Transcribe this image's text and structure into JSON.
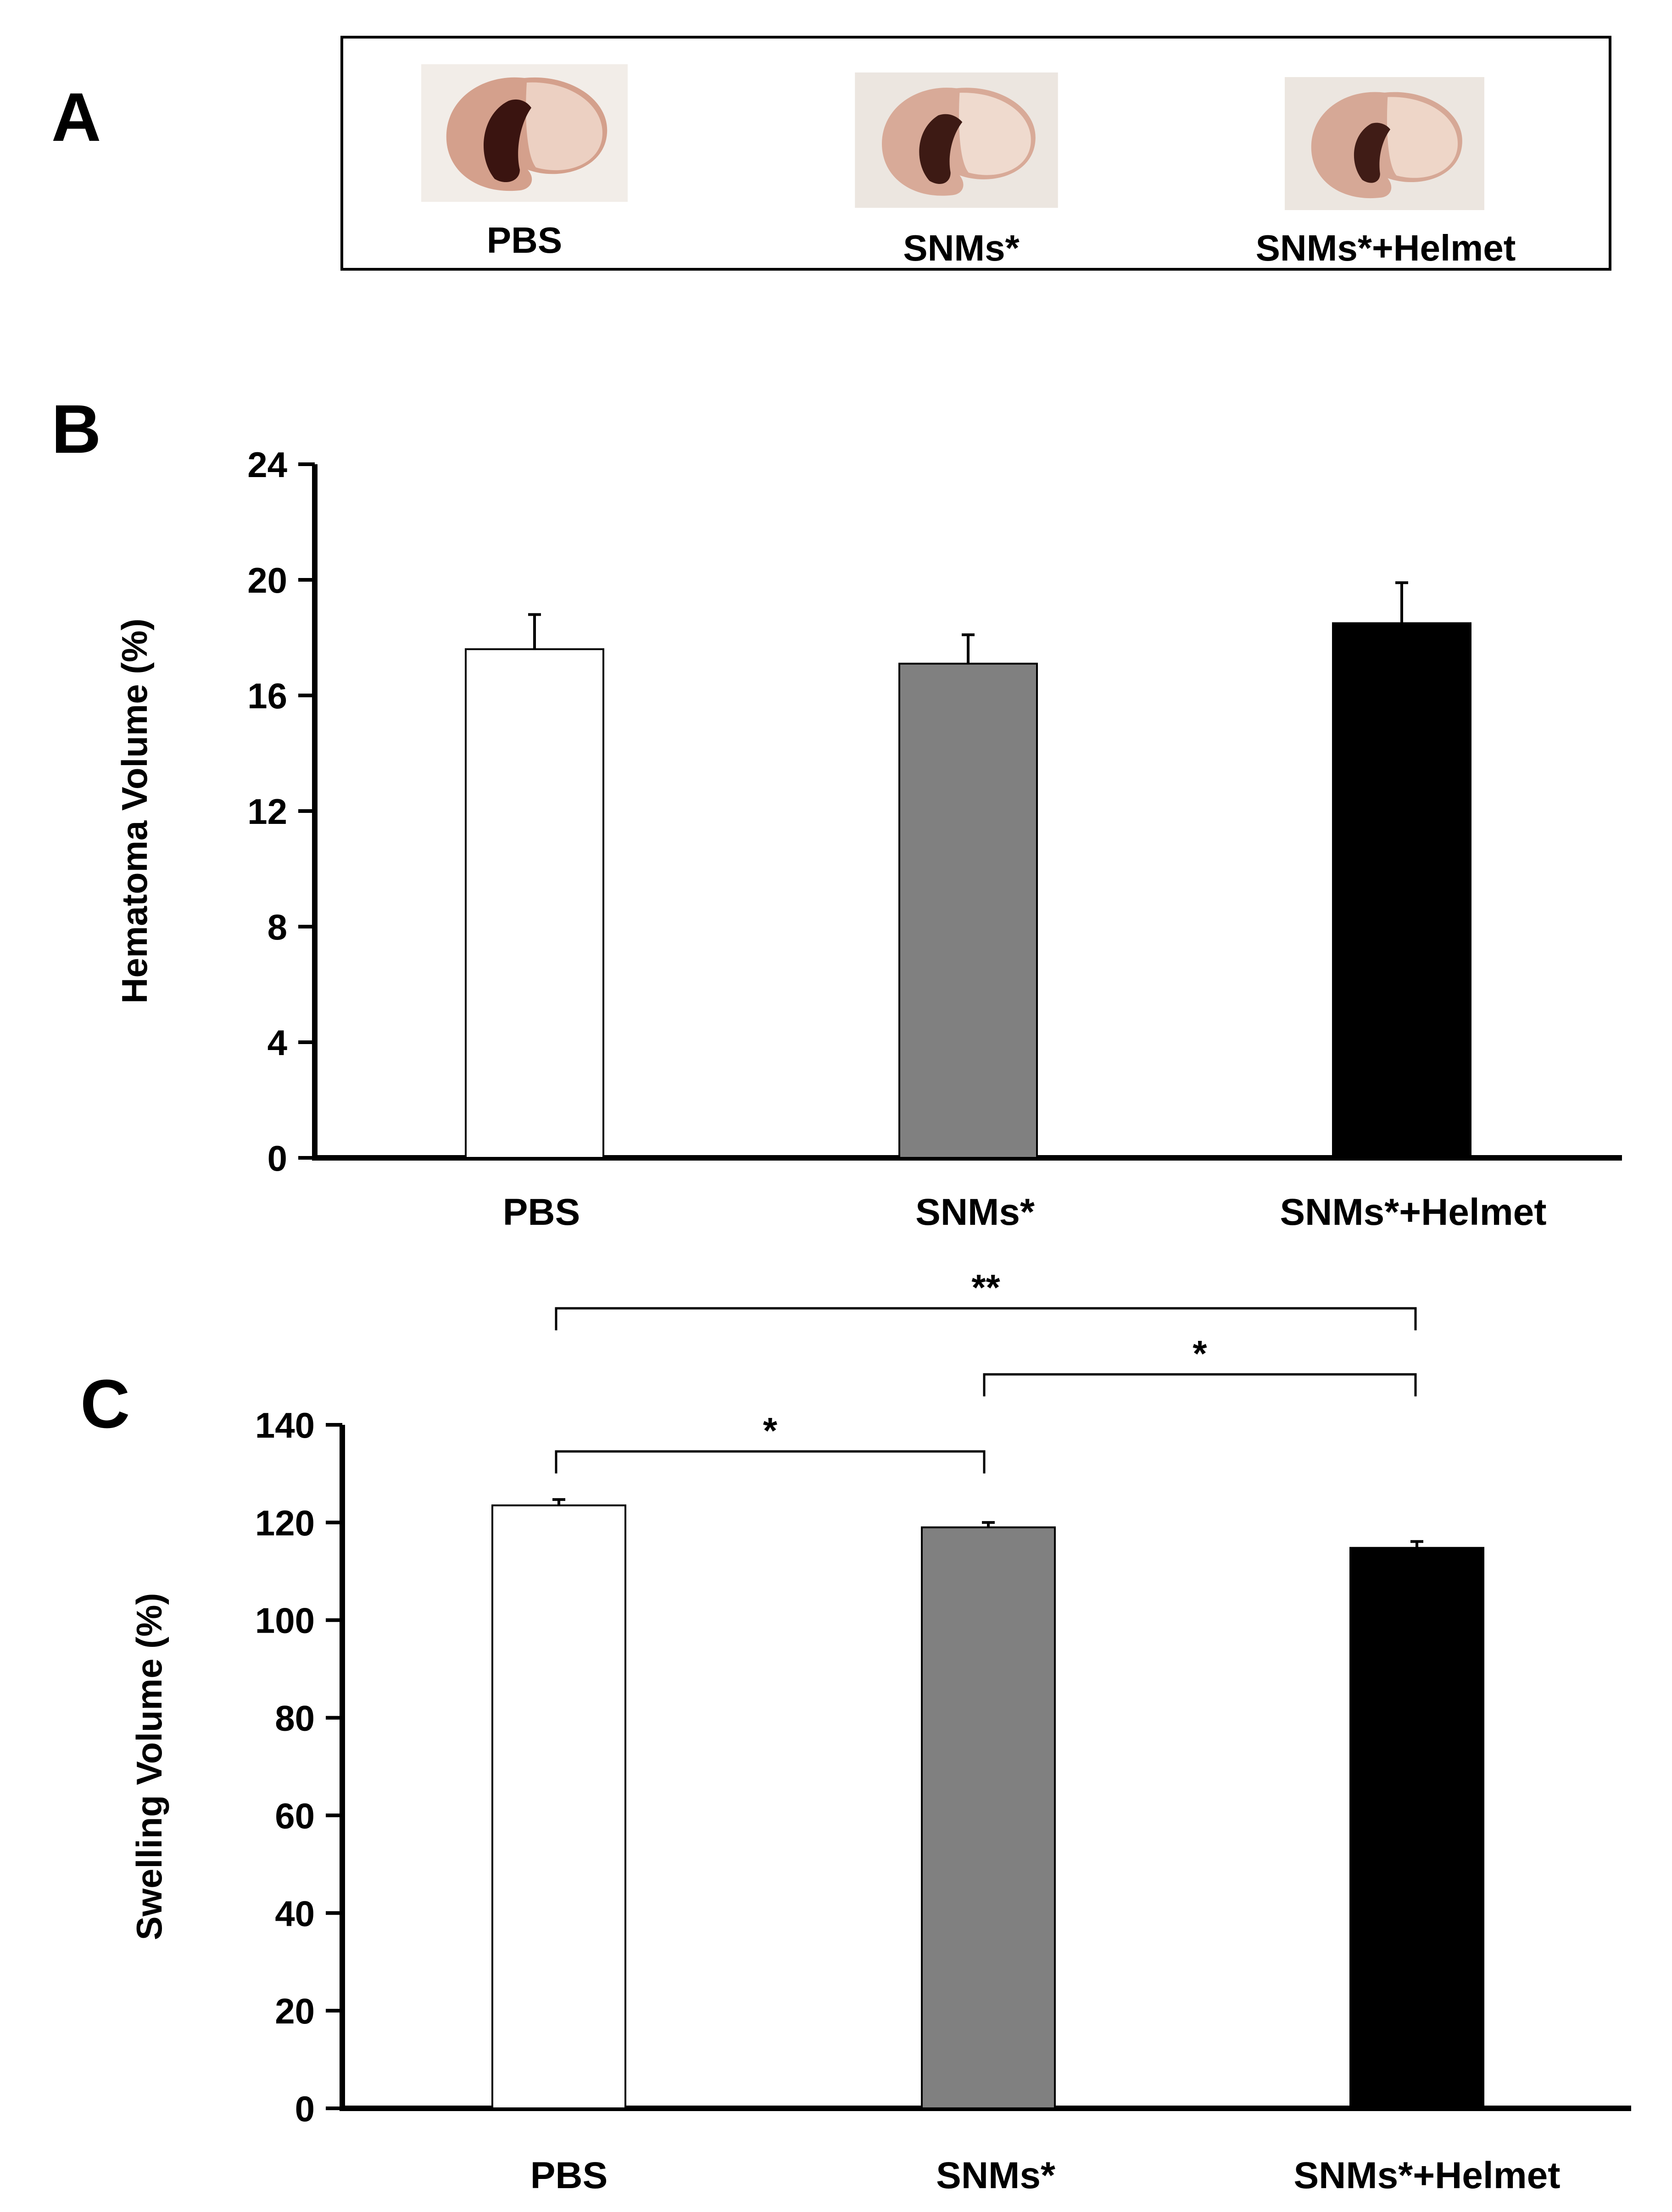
{
  "panels": {
    "a": {
      "letter": "A"
    },
    "b": {
      "letter": "B"
    },
    "c": {
      "letter": "C"
    }
  },
  "panelA": {
    "images": [
      {
        "label": "PBS",
        "icon": "brain-section-image"
      },
      {
        "label": "SNMs*",
        "icon": "brain-section-image"
      },
      {
        "label": "SNMs*+Helmet",
        "icon": "brain-section-image"
      }
    ]
  },
  "colors": {
    "pbs": "#ffffff",
    "snms": "#808080",
    "helmet": "#000000",
    "axis": "#000000"
  },
  "chart_data": [
    {
      "type": "bar",
      "panel": "B",
      "categories": [
        "PBS",
        "SNMs*",
        "SNMs*+Helmet"
      ],
      "values": [
        17.6,
        17.1,
        18.5
      ],
      "errors": [
        1.2,
        1.0,
        1.4
      ],
      "ylabel": "Hematoma Volume (%)",
      "xlabel": "",
      "ylim": [
        0,
        24
      ],
      "yticks": [
        0,
        4,
        8,
        12,
        16,
        20,
        24
      ],
      "grid": false,
      "significance": []
    },
    {
      "type": "bar",
      "panel": "C",
      "categories": [
        "PBS",
        "SNMs*",
        "SNMs*+Helmet"
      ],
      "values": [
        123.5,
        119,
        114.8
      ],
      "errors": [
        1.2,
        1.0,
        1.3
      ],
      "ylabel": "Swelling Volume (%)",
      "xlabel": "",
      "ylim": [
        0,
        140
      ],
      "yticks": [
        0,
        20,
        40,
        60,
        80,
        100,
        120,
        140
      ],
      "grid": false,
      "significance": [
        {
          "from": 0,
          "to": 2,
          "label": "**"
        },
        {
          "from": 1,
          "to": 2,
          "label": "*"
        },
        {
          "from": 0,
          "to": 1,
          "label": "*"
        }
      ]
    }
  ]
}
